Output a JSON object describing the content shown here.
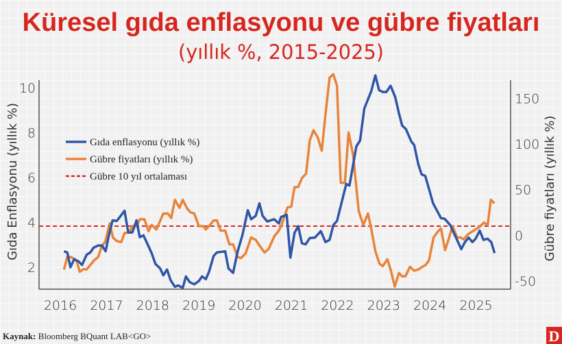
{
  "title": "Küresel gıda enflasyonu ve gübre fiyatları",
  "subtitle": "(yıllık %, 2015-2025)",
  "source_label": "Kaynak:",
  "source_text": "Bloomberg BQuant LAB<GO>",
  "logo": "D",
  "colors": {
    "title": "#d7261e",
    "food": "#2f56a6",
    "fertilizer": "#e8843a",
    "average": "#d42a1f",
    "logo": "#d7261e"
  },
  "chart_data": {
    "type": "line",
    "xlabel": "",
    "ylabel_left": "Gıda Enflasyonu (yıllık %)",
    "ylabel_right": "Gübre fiyatları (yıllık %)",
    "x_ticks": [
      "2016",
      "2017",
      "2018",
      "2019",
      "2020",
      "2021",
      "2022",
      "2023",
      "2024",
      "2025"
    ],
    "y_left_ticks": [
      "2",
      "4",
      "6",
      "8",
      "10"
    ],
    "y_right_ticks": [
      "-50",
      "0",
      "50",
      "100",
      "150"
    ],
    "y_left_lim": [
      1,
      10.7
    ],
    "y_right_lim": [
      -60,
      180
    ],
    "grid": true,
    "legend": "left",
    "series": [
      {
        "name": "Gıda enflasyonu (yıllık %)",
        "axis": "left",
        "color": "#2f56a6",
        "points": [
          [
            2016.08,
            2.71
          ],
          [
            2016.15,
            2.66
          ],
          [
            2016.22,
            2.0
          ],
          [
            2016.3,
            2.36
          ],
          [
            2016.4,
            2.25
          ],
          [
            2016.47,
            2.1
          ],
          [
            2016.57,
            2.56
          ],
          [
            2016.65,
            2.66
          ],
          [
            2016.72,
            2.87
          ],
          [
            2016.82,
            2.97
          ],
          [
            2016.9,
            2.97
          ],
          [
            2016.98,
            2.71
          ],
          [
            2017.04,
            3.32
          ],
          [
            2017.13,
            4.09
          ],
          [
            2017.22,
            4.06
          ],
          [
            2017.29,
            4.24
          ],
          [
            2017.39,
            4.52
          ],
          [
            2017.47,
            3.55
          ],
          [
            2017.56,
            3.55
          ],
          [
            2017.65,
            4.09
          ],
          [
            2017.72,
            3.34
          ],
          [
            2017.8,
            3.42
          ],
          [
            2017.88,
            3.07
          ],
          [
            2017.98,
            2.61
          ],
          [
            2018.06,
            2.15
          ],
          [
            2018.16,
            1.95
          ],
          [
            2018.23,
            1.64
          ],
          [
            2018.31,
            1.9
          ],
          [
            2018.39,
            1.41
          ],
          [
            2018.48,
            1.13
          ],
          [
            2018.55,
            1.19
          ],
          [
            2018.65,
            1.08
          ],
          [
            2018.72,
            1.59
          ],
          [
            2018.8,
            1.34
          ],
          [
            2018.9,
            1.24
          ],
          [
            2019.0,
            1.39
          ],
          [
            2019.07,
            1.59
          ],
          [
            2019.15,
            1.47
          ],
          [
            2019.22,
            1.8
          ],
          [
            2019.32,
            2.51
          ],
          [
            2019.39,
            2.66
          ],
          [
            2019.57,
            2.71
          ],
          [
            2019.64,
            1.95
          ],
          [
            2019.74,
            1.75
          ],
          [
            2019.84,
            2.71
          ],
          [
            2019.94,
            3.42
          ],
          [
            2020.06,
            4.54
          ],
          [
            2020.13,
            4.14
          ],
          [
            2020.23,
            4.29
          ],
          [
            2020.31,
            4.85
          ],
          [
            2020.38,
            4.29
          ],
          [
            2020.48,
            4.04
          ],
          [
            2020.63,
            4.14
          ],
          [
            2020.73,
            3.95
          ],
          [
            2020.78,
            4.24
          ],
          [
            2020.9,
            4.34
          ],
          [
            2020.98,
            2.43
          ],
          [
            2021.07,
            3.53
          ],
          [
            2021.15,
            3.83
          ],
          [
            2021.23,
            3.07
          ],
          [
            2021.31,
            3.02
          ],
          [
            2021.4,
            3.3
          ],
          [
            2021.51,
            3.32
          ],
          [
            2021.64,
            3.61
          ],
          [
            2021.74,
            3.12
          ],
          [
            2021.83,
            3.22
          ],
          [
            2021.91,
            3.88
          ],
          [
            2021.99,
            4.06
          ],
          [
            2022.19,
            5.71
          ],
          [
            2022.26,
            5.64
          ],
          [
            2022.41,
            7.39
          ],
          [
            2022.49,
            7.65
          ],
          [
            2022.58,
            9.07
          ],
          [
            2022.73,
            9.84
          ],
          [
            2022.82,
            10.55
          ],
          [
            2022.9,
            9.89
          ],
          [
            2022.98,
            9.81
          ],
          [
            2023.06,
            9.81
          ],
          [
            2023.15,
            10.09
          ],
          [
            2023.25,
            9.58
          ],
          [
            2023.33,
            8.87
          ],
          [
            2023.4,
            8.31
          ],
          [
            2023.48,
            8.16
          ],
          [
            2023.6,
            7.6
          ],
          [
            2023.66,
            7.45
          ],
          [
            2023.75,
            6.58
          ],
          [
            2023.82,
            6.14
          ],
          [
            2023.9,
            6.07
          ],
          [
            2024.07,
            4.85
          ],
          [
            2024.24,
            4.19
          ],
          [
            2024.32,
            4.16
          ],
          [
            2024.44,
            3.88
          ],
          [
            2024.57,
            3.3
          ],
          [
            2024.68,
            2.81
          ],
          [
            2024.76,
            3.12
          ],
          [
            2024.84,
            3.32
          ],
          [
            2024.92,
            3.12
          ],
          [
            2024.99,
            3.27
          ],
          [
            2025.08,
            3.63
          ],
          [
            2025.16,
            3.22
          ],
          [
            2025.25,
            3.27
          ],
          [
            2025.33,
            3.12
          ],
          [
            2025.4,
            2.63
          ]
        ]
      },
      {
        "name": "Gübre fiyatları (yıllık %)",
        "axis": "right",
        "color": "#e8843a",
        "points": [
          [
            2016.08,
            -37.5
          ],
          [
            2016.15,
            -23.8
          ],
          [
            2016.23,
            -23.8
          ],
          [
            2016.35,
            -27.5
          ],
          [
            2016.42,
            -40
          ],
          [
            2016.5,
            -37
          ],
          [
            2016.57,
            -37.5
          ],
          [
            2016.67,
            -31.3
          ],
          [
            2016.73,
            -27.5
          ],
          [
            2016.82,
            -23.8
          ],
          [
            2016.9,
            -11.3
          ],
          [
            2016.97,
            -7.5
          ],
          [
            2017.07,
            13
          ],
          [
            2017.14,
            -2.5
          ],
          [
            2017.22,
            -6.3
          ],
          [
            2017.32,
            -7.5
          ],
          [
            2017.39,
            2.5
          ],
          [
            2017.49,
            3
          ],
          [
            2017.56,
            10
          ],
          [
            2017.65,
            10
          ],
          [
            2017.72,
            17.5
          ],
          [
            2017.82,
            17.5
          ],
          [
            2017.91,
            4.5
          ],
          [
            2017.98,
            11.3
          ],
          [
            2018.08,
            6.3
          ],
          [
            2018.23,
            23.8
          ],
          [
            2018.33,
            23.8
          ],
          [
            2018.4,
            18.8
          ],
          [
            2018.48,
            38.8
          ],
          [
            2018.58,
            30
          ],
          [
            2018.65,
            38.8
          ],
          [
            2018.75,
            28.8
          ],
          [
            2018.82,
            25
          ],
          [
            2018.9,
            23.8
          ],
          [
            2019.0,
            10
          ],
          [
            2019.1,
            10
          ],
          [
            2019.15,
            6.3
          ],
          [
            2019.22,
            10
          ],
          [
            2019.32,
            16.3
          ],
          [
            2019.39,
            16.3
          ],
          [
            2019.47,
            5
          ],
          [
            2019.57,
            5
          ],
          [
            2019.66,
            -10
          ],
          [
            2019.74,
            -10
          ],
          [
            2019.84,
            -23.8
          ],
          [
            2019.91,
            -25
          ],
          [
            2020.01,
            -20
          ],
          [
            2020.13,
            -2.5
          ],
          [
            2020.23,
            -5
          ],
          [
            2020.33,
            -12.5
          ],
          [
            2020.42,
            -18.8
          ],
          [
            2020.51,
            -15
          ],
          [
            2020.63,
            -1.3
          ],
          [
            2020.73,
            5
          ],
          [
            2020.78,
            10
          ],
          [
            2020.92,
            30.5
          ],
          [
            2021.0,
            31.3
          ],
          [
            2021.07,
            52.5
          ],
          [
            2021.15,
            53
          ],
          [
            2021.23,
            62.5
          ],
          [
            2021.32,
            67.5
          ],
          [
            2021.4,
            103.8
          ],
          [
            2021.48,
            115
          ],
          [
            2021.57,
            107.5
          ],
          [
            2021.66,
            92.5
          ],
          [
            2021.74,
            132.5
          ],
          [
            2021.83,
            172.5
          ],
          [
            2021.91,
            176.3
          ],
          [
            2021.99,
            163.8
          ],
          [
            2022.07,
            57.5
          ],
          [
            2022.16,
            57.5
          ],
          [
            2022.24,
            112.5
          ],
          [
            2022.34,
            87.5
          ],
          [
            2022.46,
            26.3
          ],
          [
            2022.56,
            11.3
          ],
          [
            2022.66,
            23.8
          ],
          [
            2022.73,
            7.5
          ],
          [
            2022.82,
            -17.5
          ],
          [
            2022.91,
            -31.3
          ],
          [
            2022.98,
            -33.8
          ],
          [
            2023.08,
            -26.3
          ],
          [
            2023.15,
            -37.5
          ],
          [
            2023.24,
            -56.3
          ],
          [
            2023.33,
            -41.3
          ],
          [
            2023.4,
            -45
          ],
          [
            2023.47,
            -45
          ],
          [
            2023.57,
            -34.5
          ],
          [
            2023.66,
            -38.8
          ],
          [
            2023.75,
            -37.5
          ],
          [
            2023.82,
            -35
          ],
          [
            2023.91,
            -32.5
          ],
          [
            2023.98,
            -27.5
          ],
          [
            2024.08,
            -2.5
          ],
          [
            2024.17,
            3.8
          ],
          [
            2024.24,
            7.5
          ],
          [
            2024.33,
            -16.3
          ],
          [
            2024.41,
            -3.8
          ],
          [
            2024.49,
            10
          ],
          [
            2024.59,
            -2.5
          ],
          [
            2024.67,
            -2.5
          ],
          [
            2024.73,
            -4.5
          ],
          [
            2024.83,
            1.3
          ],
          [
            2024.93,
            4.5
          ],
          [
            2025.03,
            7.5
          ],
          [
            2025.09,
            10
          ],
          [
            2025.17,
            13.8
          ],
          [
            2025.25,
            11.3
          ],
          [
            2025.32,
            38.8
          ],
          [
            2025.4,
            35
          ]
        ]
      },
      {
        "name": "Gübre 10 yıl ortalaması",
        "axis": "right",
        "color": "#d42a1f",
        "style": "dashed",
        "value": 10
      }
    ]
  }
}
